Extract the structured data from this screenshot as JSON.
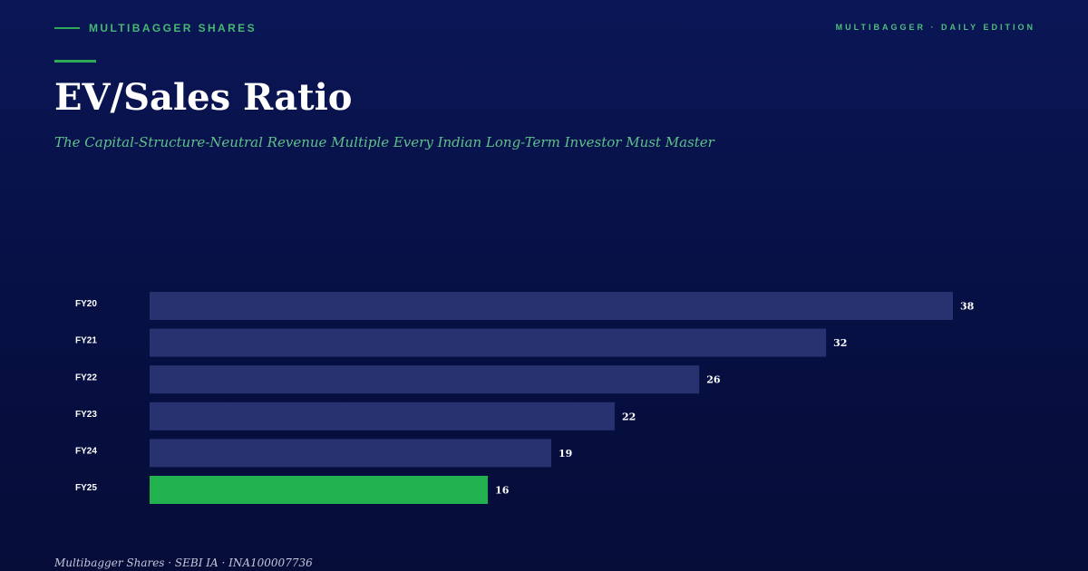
{
  "header": {
    "brand": "MULTIBAGGER SHARES",
    "edition": "MULTIBAGGER · DAILY EDITION"
  },
  "title": "EV/Sales Ratio",
  "subtitle": "The Capital-Structure-Neutral Revenue Multiple Every Indian Long-Term Investor Must Master",
  "footer": "Multibagger Shares · SEBI IA · INA100007736",
  "colors": {
    "bar": "#283270",
    "highlight": "#22b14f",
    "label": "#ffffff",
    "value": "#ffffff"
  },
  "chart_data": {
    "type": "bar",
    "orientation": "horizontal",
    "categories": [
      "FY20",
      "FY21",
      "FY22",
      "FY23",
      "FY24",
      "FY25"
    ],
    "values": [
      38,
      32,
      26,
      22,
      19,
      16
    ],
    "highlight_index": 5,
    "xlim": [
      0,
      38
    ],
    "grid": false,
    "legend": "none"
  }
}
